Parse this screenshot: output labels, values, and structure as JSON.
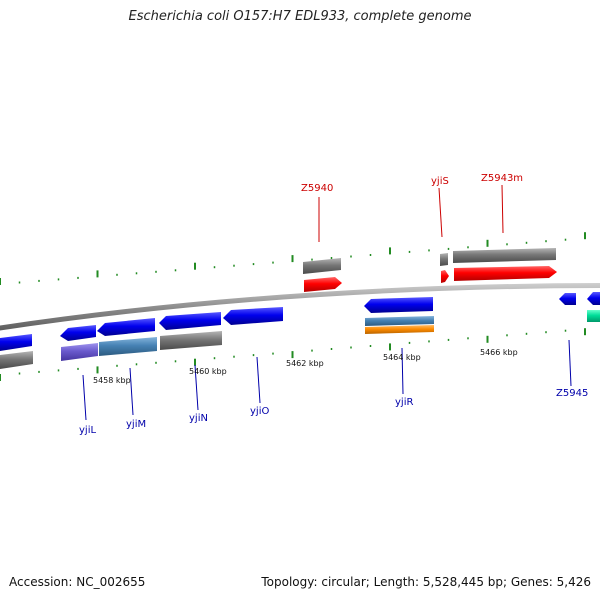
{
  "title": "Escherichia coli O157:H7 EDL933, complete genome",
  "footer": {
    "accession": "Accession: NC_002655",
    "topology": "Topology: circular; Length: 5,528,445 bp; Genes: 5,426"
  },
  "scale_labels": [
    "5458 kbp",
    "5460 kbp",
    "5462 kbp",
    "5464 kbp",
    "5466 kbp"
  ],
  "gene_labels": {
    "top": [
      "Z5940",
      "yjiS",
      "Z5943m"
    ],
    "bottom": [
      "yjiL",
      "yjiM",
      "yjiN",
      "yjiO",
      "yjiR",
      "Z5945"
    ]
  },
  "colors": {
    "forward_label": "#cc0000",
    "reverse_label": "#0000aa",
    "tick": "#228B22",
    "forward_gene": "#ff0000",
    "reverse_gene": "#0000ee",
    "cog_gray": "#777777",
    "cog_purple": "#6a5acd",
    "cog_steel": "#4682b4",
    "cog_orange": "#ff8c00",
    "cog_teal": "#00cc99",
    "backbone": "#8c8c8c"
  }
}
